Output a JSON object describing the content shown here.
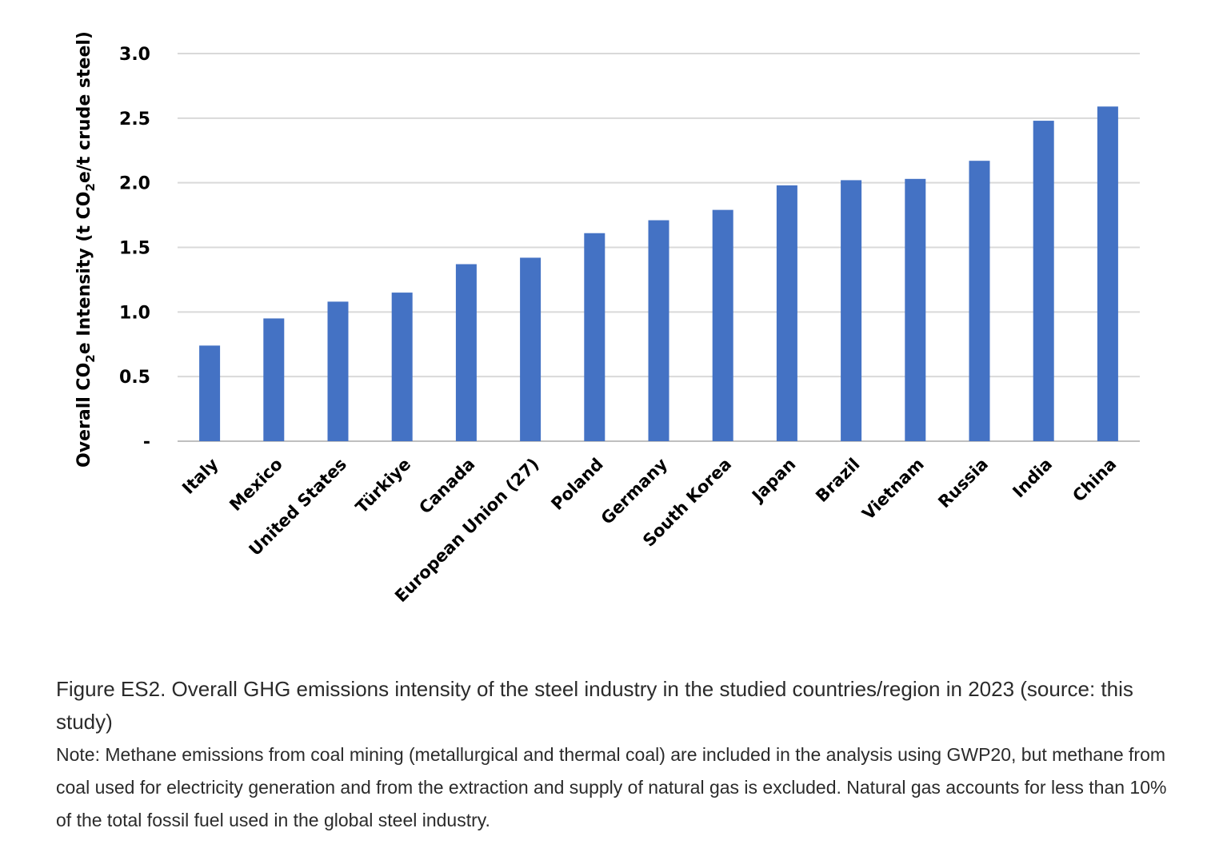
{
  "chart_data": {
    "type": "bar",
    "categories": [
      "Italy",
      "Mexico",
      "United States",
      "Türkiye",
      "Canada",
      "European Union (27)",
      "Poland",
      "Germany",
      "South Korea",
      "Japan",
      "Brazil",
      "Vietnam",
      "Russia",
      "India",
      "China"
    ],
    "values": [
      0.74,
      0.95,
      1.08,
      1.15,
      1.37,
      1.42,
      1.61,
      1.71,
      1.79,
      1.98,
      2.02,
      2.03,
      2.17,
      2.48,
      2.59
    ],
    "ylabel_parts": {
      "before_sub1": "Overall CO",
      "sub1": "2",
      "between": "e Intensity (t CO",
      "sub2": "2",
      "after": "e/t crude steel)"
    },
    "ylim": [
      0,
      3.0
    ],
    "y_ticks": [
      "-",
      "0.5",
      "1.0",
      "1.5",
      "2.0",
      "2.5",
      "3.0"
    ],
    "grid": true,
    "bar_color": "#4472C4",
    "grid_color": "#D9D9D9"
  },
  "caption": {
    "title": "Figure ES2. Overall GHG emissions intensity of the steel industry in the studied countries/region in 2023 (source: this study)",
    "note": "Note: Methane emissions from coal mining (metallurgical and thermal coal) are included in the analysis using GWP20, but methane from coal used for electricity generation and from the extraction and supply of natural gas is excluded. Natural gas accounts for less than 10% of the total fossil fuel used in the global steel industry."
  }
}
